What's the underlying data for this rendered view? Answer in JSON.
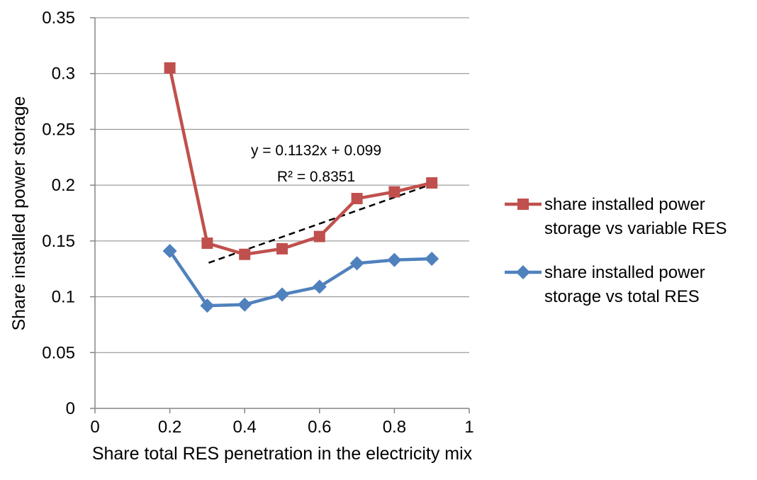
{
  "chart_data": {
    "type": "scatter",
    "title": "",
    "xlabel": "Share total RES penetration in the electricity mix",
    "ylabel": "Share installed power storage",
    "xlim": [
      0,
      1
    ],
    "ylim": [
      0,
      0.35
    ],
    "xticks": [
      "0",
      "0.2",
      "0.4",
      "0.6",
      "0.8",
      "1"
    ],
    "yticks": [
      "0",
      "0.05",
      "0.1",
      "0.15",
      "0.2",
      "0.25",
      "0.3",
      "0.35"
    ],
    "grid": "horizontal",
    "legend_position": "right",
    "series": [
      {
        "name": "share installed power storage vs variable RES",
        "color": "#c0504d",
        "marker": "square",
        "x": [
          0.2,
          0.3,
          0.4,
          0.5,
          0.6,
          0.7,
          0.8,
          0.9
        ],
        "y": [
          0.305,
          0.148,
          0.138,
          0.143,
          0.154,
          0.188,
          0.194,
          0.202
        ]
      },
      {
        "name": "share installed power storage vs total RES",
        "color": "#4f81bd",
        "marker": "diamond",
        "x": [
          0.2,
          0.3,
          0.4,
          0.5,
          0.6,
          0.7,
          0.8,
          0.9
        ],
        "y": [
          0.141,
          0.092,
          0.093,
          0.102,
          0.109,
          0.13,
          0.133,
          0.134
        ]
      }
    ],
    "trendline": {
      "style": "dashed",
      "color": "#000000",
      "slope": 0.1132,
      "intercept": 0.099,
      "x_range": [
        0.3,
        0.9
      ],
      "equation": "y = 0.1132x + 0.099",
      "r_squared": "R² = 0.8351"
    }
  }
}
